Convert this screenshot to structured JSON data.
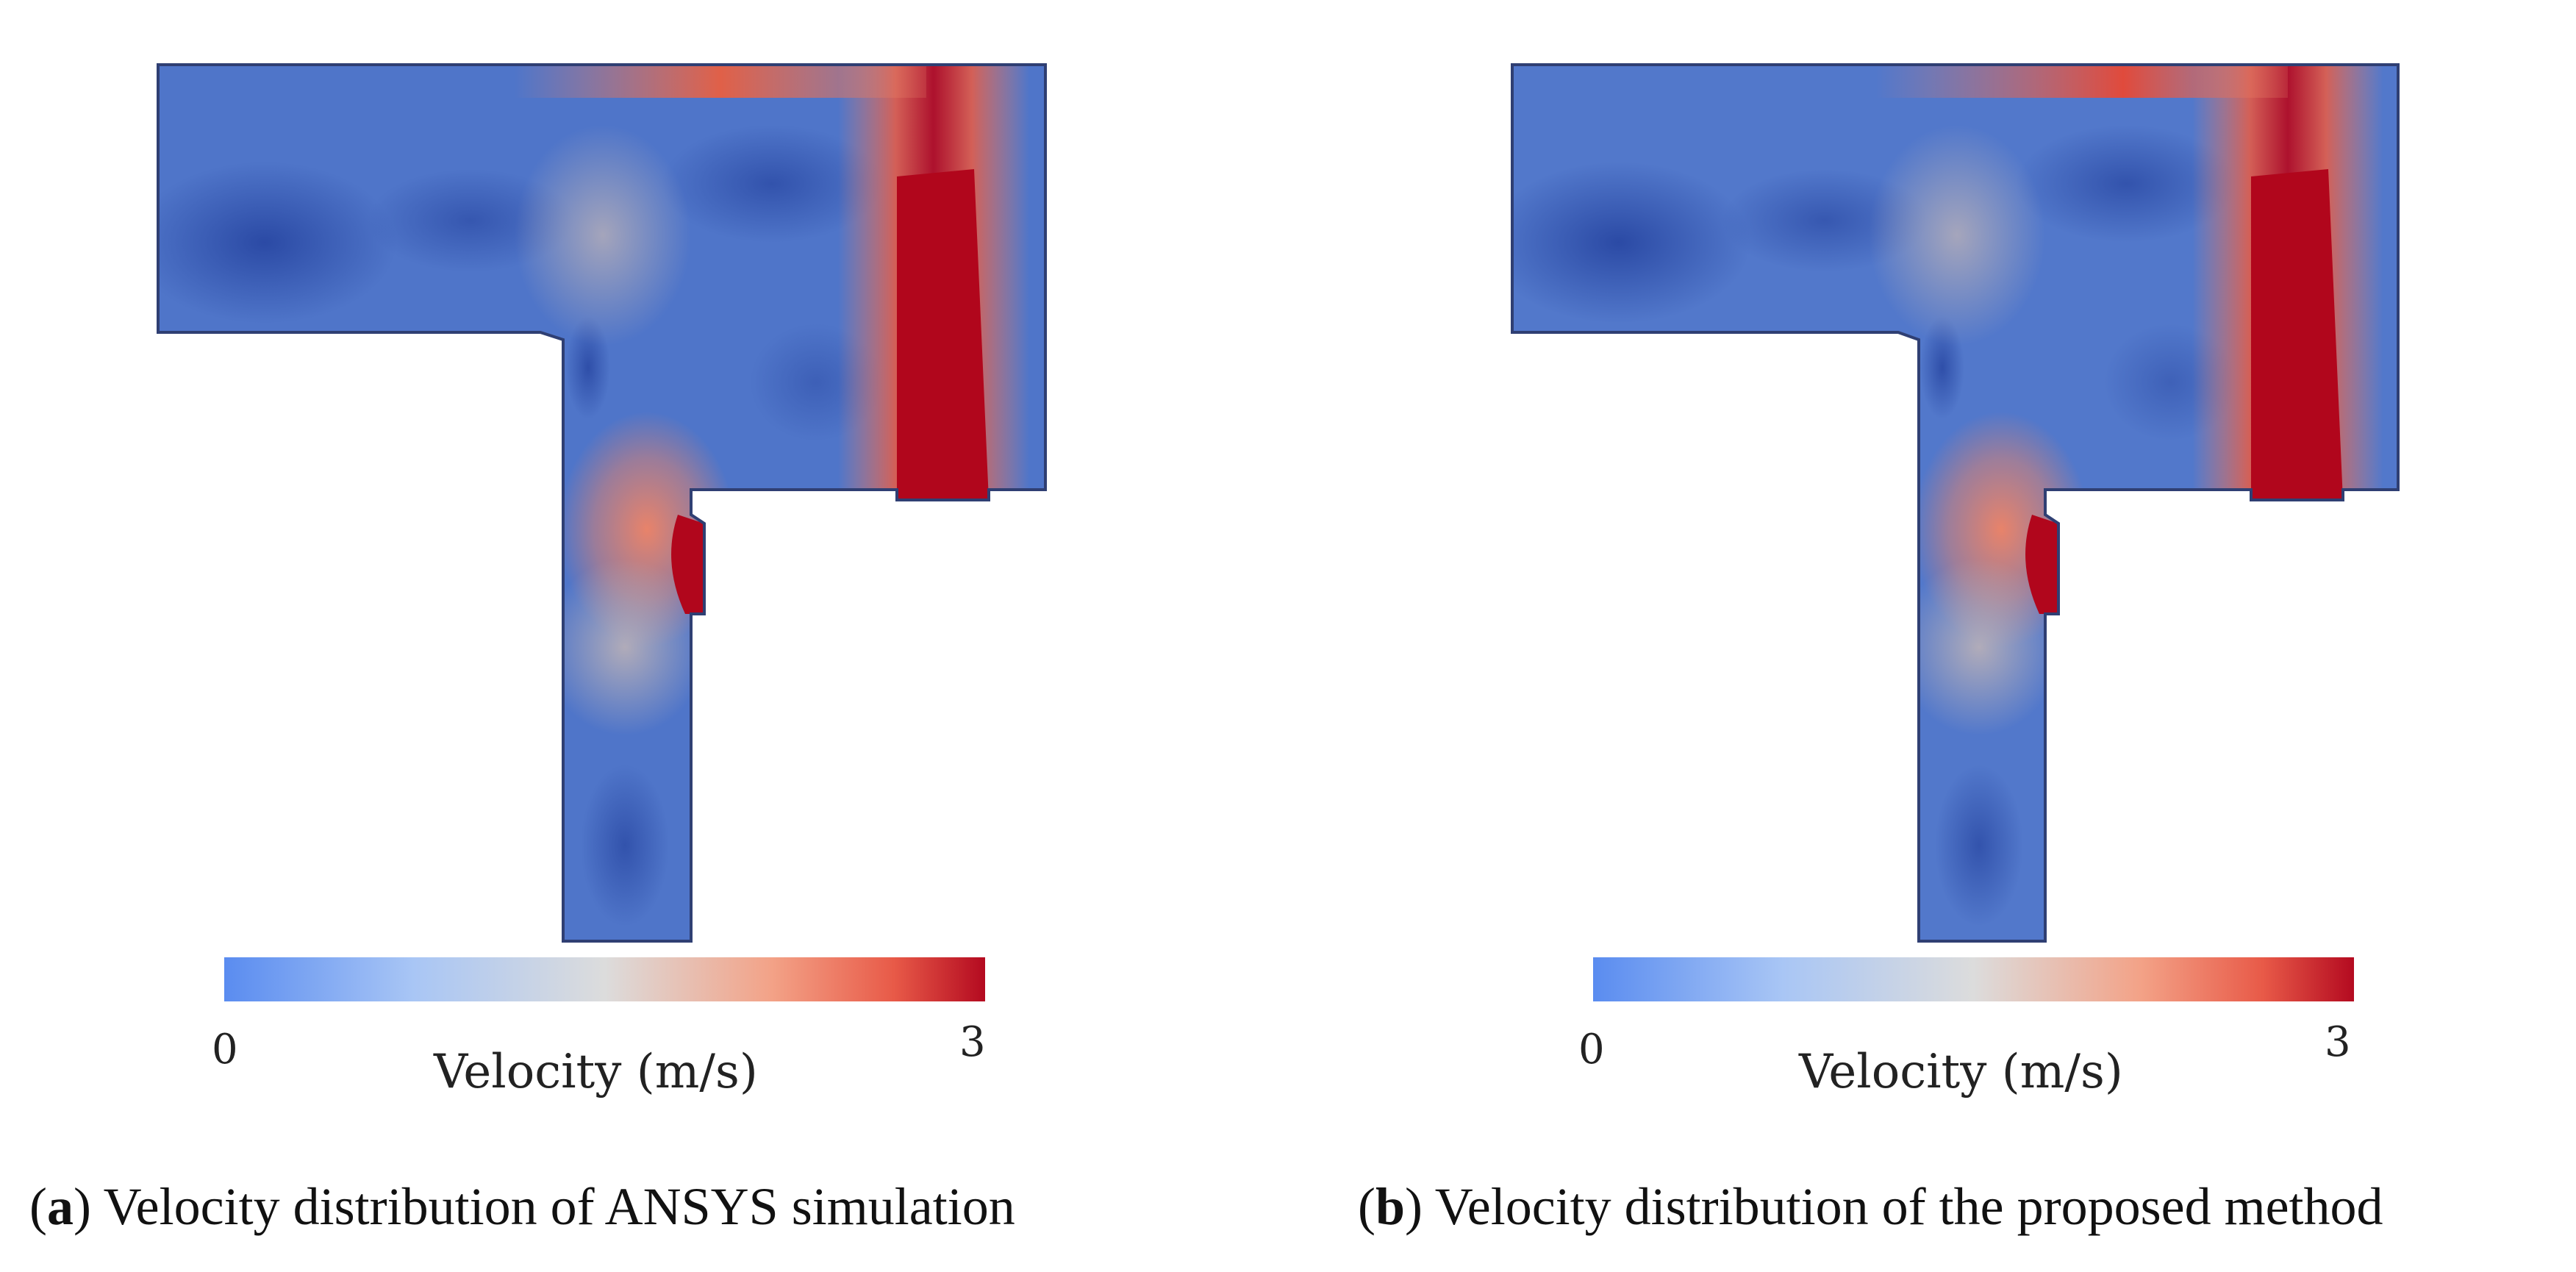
{
  "colors": {
    "low": "#4d7fe0",
    "mid": "#d9dce3",
    "high": "#b1061c",
    "deep_blue": "#2a4aa3",
    "outline": "#2f3f73"
  },
  "panels": [
    {
      "id": "a",
      "colorbar": {
        "min_label": "0",
        "max_label": "3",
        "title": "Velocity (m/s)",
        "min": 0,
        "max": 3
      },
      "caption": {
        "letter": "a",
        "text": " Velocity distribution of ANSYS simulation"
      }
    },
    {
      "id": "b",
      "colorbar": {
        "min_label": "0",
        "max_label": "3",
        "title": "Velocity (m/s)",
        "min": 0,
        "max": 3
      },
      "caption": {
        "letter": "b",
        "text": " Velocity distribution of the proposed method"
      }
    }
  ]
}
